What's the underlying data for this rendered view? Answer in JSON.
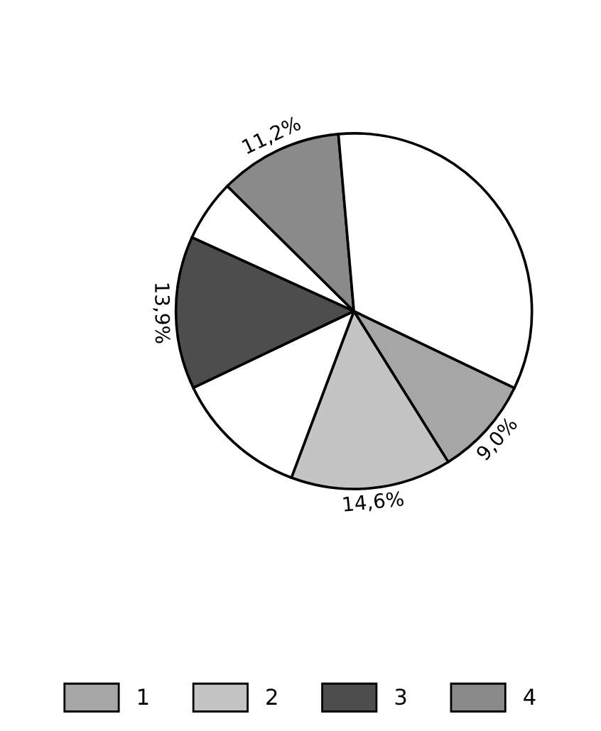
{
  "chart_data": {
    "type": "pie",
    "categories": [
      "1",
      "2",
      null,
      "3",
      null,
      "4",
      null
    ],
    "values": [
      9.0,
      14.6,
      12.2,
      13.9,
      5.6,
      11.2,
      33.5
    ],
    "value_labels": [
      "9,0%",
      "14,6%",
      null,
      "13,9%",
      null,
      "11,2%",
      null
    ],
    "colors": [
      "#a6a6a6",
      "#c4c4c4",
      "#ffffff",
      "#4d4d4d",
      "#ffffff",
      "#8a8a8a",
      "#ffffff"
    ],
    "legend": "bottom"
  }
}
